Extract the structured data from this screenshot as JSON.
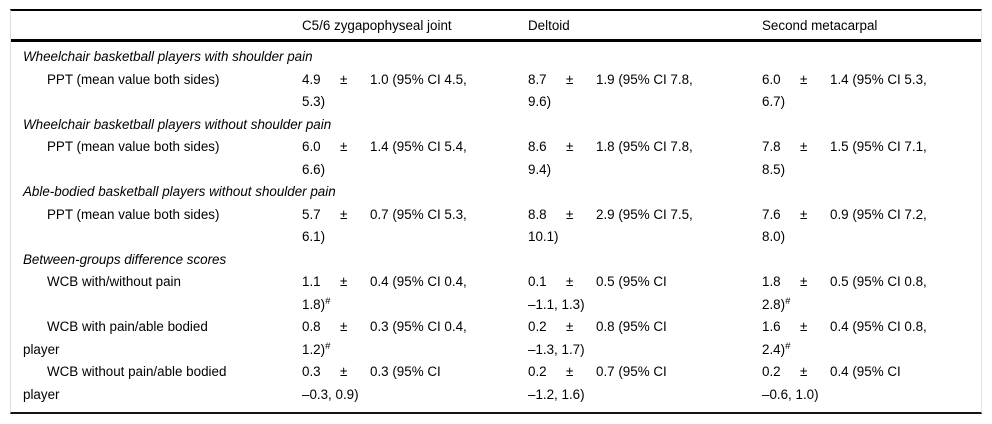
{
  "table": {
    "pm_symbol": "±",
    "columns": [
      "",
      "C5/6 zygapophyseal joint",
      "Deltoid",
      "Second metacarpal"
    ],
    "sections": [
      {
        "heading": "Wheelchair basketball players with shoulder pain",
        "rows": [
          {
            "label": "PPT (mean value both sides)",
            "cells": [
              {
                "mean": "4.9",
                "ci1": "1.0 (95% CI 4.5,",
                "ci2": "5.3)"
              },
              {
                "mean": "8.7",
                "ci1": "1.9 (95% CI 7.8,",
                "ci2": "9.6)"
              },
              {
                "mean": "6.0",
                "ci1": "1.4 (95% CI 5.3,",
                "ci2": "6.7)"
              }
            ]
          }
        ]
      },
      {
        "heading": "Wheelchair basketball players without shoulder pain",
        "rows": [
          {
            "label": "PPT (mean value both sides)",
            "cells": [
              {
                "mean": "6.0",
                "ci1": "1.4 (95% CI 5.4,",
                "ci2": "6.6)"
              },
              {
                "mean": "8.6",
                "ci1": "1.8 (95% CI 7.8,",
                "ci2": "9.4)"
              },
              {
                "mean": "7.8",
                "ci1": "1.5 (95% CI 7.1,",
                "ci2": "8.5)"
              }
            ]
          }
        ]
      },
      {
        "heading": "Able-bodied basketball players without shoulder pain",
        "rows": [
          {
            "label": "PPT (mean value both sides)",
            "cells": [
              {
                "mean": "5.7",
                "ci1": "0.7 (95% CI 5.3,",
                "ci2": "6.1)"
              },
              {
                "mean": "8.8",
                "ci1": "2.9 (95% CI 7.5,",
                "ci2": "10.1)"
              },
              {
                "mean": "7.6",
                "ci1": "0.9 (95% CI 7.2,",
                "ci2": "8.0)"
              }
            ]
          }
        ]
      },
      {
        "heading": "Between-groups difference scores",
        "rows": [
          {
            "label": "WCB with/without pain",
            "cells": [
              {
                "mean": "1.1",
                "ci1": "0.4 (95% CI 0.4,",
                "ci2": "1.8)",
                "sup": "#"
              },
              {
                "mean": "0.1",
                "ci1": "0.5 (95% CI",
                "ci2": "–1.1, 1.3)"
              },
              {
                "mean": "1.8",
                "ci1": "0.5 (95% CI 0.8,",
                "ci2": "2.8)",
                "sup": "#"
              }
            ]
          },
          {
            "label": "WCB with pain/able bodied",
            "label_line2": "player",
            "cells": [
              {
                "mean": "0.8",
                "ci1": "0.3 (95% CI 0.4,",
                "ci2": "1.2)",
                "sup": "#"
              },
              {
                "mean": "0.2",
                "ci1": "0.8 (95% CI",
                "ci2": "–1.3, 1.7)"
              },
              {
                "mean": "1.6",
                "ci1": "0.4 (95% CI 0.8,",
                "ci2": "2.4)",
                "sup": "#"
              }
            ]
          },
          {
            "label": "WCB without pain/able bodied",
            "label_line2": "player",
            "cells": [
              {
                "mean": "0.3",
                "ci1": "0.3 (95% CI",
                "ci2": "–0.3, 0.9)"
              },
              {
                "mean": "0.2",
                "ci1": "0.7 (95% CI",
                "ci2": "–1.2, 1.6)"
              },
              {
                "mean": "0.2",
                "ci1": "0.4 (95% CI",
                "ci2": "–0.6, 1.0)"
              }
            ]
          }
        ]
      }
    ]
  }
}
